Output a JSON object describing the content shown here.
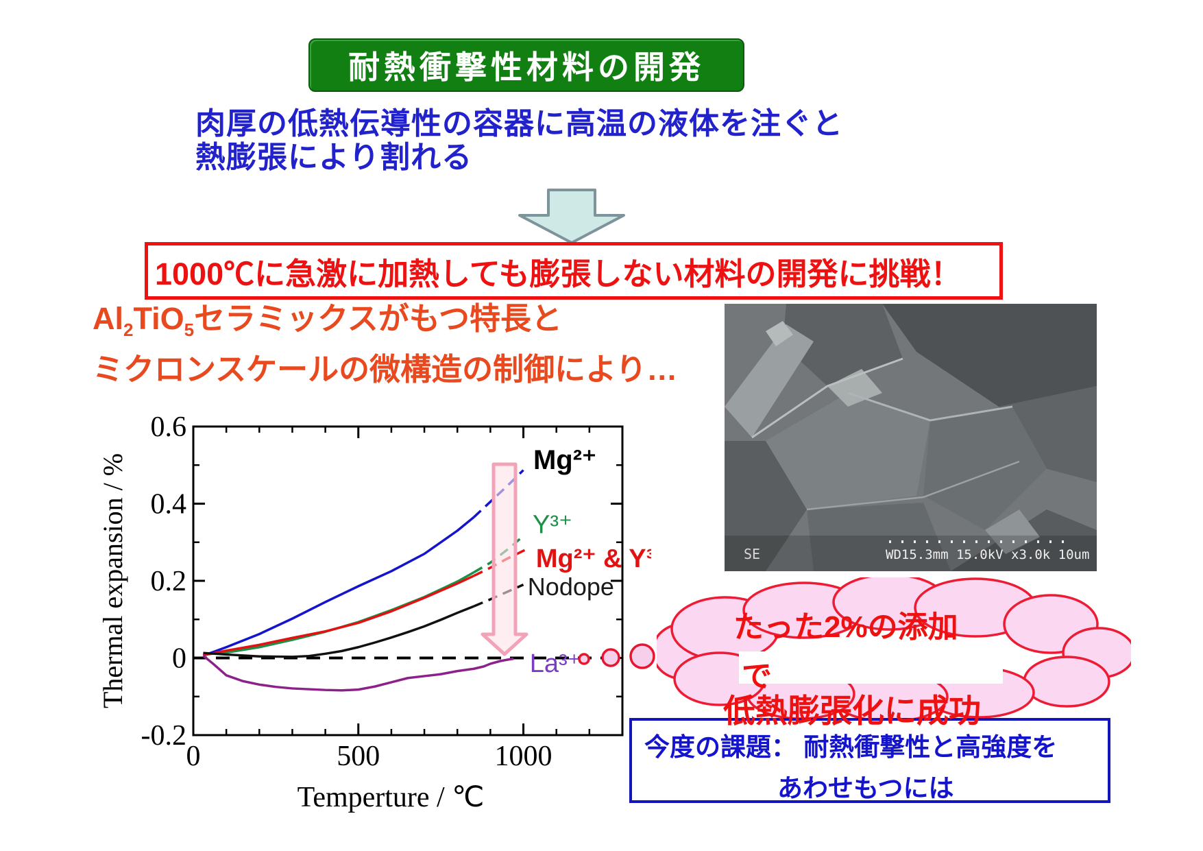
{
  "slide": {
    "title_banner": "耐熱衝撃性材料の開発",
    "intro_lines": [
      "肉厚の低熱伝導性の容器に高温の液体を注ぐと",
      "熱膨張により割れる"
    ],
    "challenge": "1000℃に急激に加熱しても膨張しない材料の開発に挑戦！",
    "feature_line1": {
      "p1": "Al",
      "sub1": "2",
      "p2": "TiO",
      "sub2": "5",
      "rest": "セラミックスがもつ特長と"
    },
    "feature_line2": "ミクロンスケールの微構造の制御により…",
    "cloud_lines": [
      "たった2%の添加",
      "で",
      "低熱膨張化に成功"
    ],
    "task_lines": [
      "今度の課題： 耐熱衝撃性と高強度を",
      "あわせもつには"
    ],
    "sem_caption": {
      "detector": "SE",
      "info": "WD15.3mm 15.0kV x3.0k   10um"
    }
  },
  "colors": {
    "banner_green": "#127f12",
    "heading_blue": "#2222cc",
    "alert_red": "#ee1111",
    "feature_orange": "#e8491e",
    "arrow_fill": "#cfe9e7",
    "arrow_stroke": "#7e949b",
    "cloud_pink": "#fbd7f1",
    "cloud_stroke": "#ed1b34",
    "task_blue": "#1414bb",
    "highlight_arrow_pink": "#f2a3b8"
  },
  "chart_data": {
    "type": "line",
    "title": "",
    "xlabel": "Temperture / ℃",
    "ylabel": "Thermal expansion / %",
    "xlim": [
      0,
      1300
    ],
    "ylim": [
      -0.2,
      0.6
    ],
    "xticks_major": [
      0,
      500,
      1000
    ],
    "xtick_minor_step": 100,
    "yticks_major": [
      -0.2,
      0,
      0.2,
      0.4,
      0.6
    ],
    "ytick_minor_step": 0.1,
    "grid": false,
    "zero_line_dashed": true,
    "legend_position": "labels-on-chart",
    "series": [
      {
        "name": "Mg2+",
        "color": "#1414cc",
        "dash_from": 850,
        "points": [
          [
            30,
            0.006
          ],
          [
            100,
            0.028
          ],
          [
            200,
            0.062
          ],
          [
            300,
            0.102
          ],
          [
            400,
            0.145
          ],
          [
            500,
            0.186
          ],
          [
            600,
            0.225
          ],
          [
            700,
            0.27
          ],
          [
            800,
            0.33
          ],
          [
            850,
            0.365
          ],
          [
            900,
            0.405
          ],
          [
            950,
            0.445
          ],
          [
            1000,
            0.487
          ]
        ]
      },
      {
        "name": "Y3+",
        "color": "#1d9048",
        "dash_from": 830,
        "points": [
          [
            30,
            0.009
          ],
          [
            100,
            0.014
          ],
          [
            200,
            0.028
          ],
          [
            300,
            0.047
          ],
          [
            400,
            0.068
          ],
          [
            500,
            0.093
          ],
          [
            600,
            0.124
          ],
          [
            700,
            0.158
          ],
          [
            800,
            0.198
          ],
          [
            850,
            0.222
          ],
          [
            900,
            0.247
          ],
          [
            950,
            0.28
          ],
          [
            1000,
            0.316
          ]
        ]
      },
      {
        "name": "Mg2+ & Y3+",
        "color": "#e21212",
        "dash_from": 840,
        "points": [
          [
            30,
            0.007
          ],
          [
            100,
            0.019
          ],
          [
            200,
            0.034
          ],
          [
            300,
            0.052
          ],
          [
            400,
            0.069
          ],
          [
            500,
            0.091
          ],
          [
            600,
            0.121
          ],
          [
            700,
            0.156
          ],
          [
            800,
            0.193
          ],
          [
            850,
            0.213
          ],
          [
            900,
            0.234
          ],
          [
            950,
            0.257
          ],
          [
            1010,
            0.282
          ]
        ]
      },
      {
        "name": "Nodope",
        "color": "#111111",
        "dash_from": 820,
        "points": [
          [
            30,
            0.013
          ],
          [
            100,
            0.009
          ],
          [
            200,
            0.004
          ],
          [
            300,
            0.003
          ],
          [
            350,
            0.005
          ],
          [
            400,
            0.011
          ],
          [
            450,
            0.018
          ],
          [
            500,
            0.028
          ],
          [
            550,
            0.04
          ],
          [
            600,
            0.053
          ],
          [
            650,
            0.067
          ],
          [
            700,
            0.082
          ],
          [
            750,
            0.099
          ],
          [
            800,
            0.117
          ],
          [
            850,
            0.134
          ],
          [
            900,
            0.152
          ],
          [
            950,
            0.171
          ],
          [
            1000,
            0.19
          ]
        ]
      },
      {
        "name": "La3+",
        "color": "#8c2289",
        "points": [
          [
            30,
            0.006
          ],
          [
            60,
            -0.015
          ],
          [
            100,
            -0.045
          ],
          [
            150,
            -0.06
          ],
          [
            200,
            -0.069
          ],
          [
            250,
            -0.075
          ],
          [
            300,
            -0.079
          ],
          [
            350,
            -0.081
          ],
          [
            400,
            -0.083
          ],
          [
            450,
            -0.084
          ],
          [
            500,
            -0.082
          ],
          [
            550,
            -0.074
          ],
          [
            600,
            -0.063
          ],
          [
            650,
            -0.052
          ],
          [
            700,
            -0.047
          ],
          [
            750,
            -0.042
          ],
          [
            800,
            -0.034
          ],
          [
            850,
            -0.028
          ],
          [
            880,
            -0.022
          ],
          [
            900,
            -0.015
          ],
          [
            930,
            -0.008
          ],
          [
            955,
            -0.004
          ],
          [
            970,
            -0.002
          ]
        ]
      }
    ],
    "annotations": [
      {
        "text": "Mg²⁺",
        "x": 1030,
        "y": 0.49,
        "color": "#000000",
        "size": 40,
        "bold": true
      },
      {
        "text": "Y³⁺",
        "x": 1028,
        "y": 0.324,
        "color": "#1d9048",
        "size": 38,
        "bold": false
      },
      {
        "text": "Mg²⁺ & Y³⁺",
        "x": 1038,
        "y": 0.236,
        "color": "#e21212",
        "size": 38,
        "bold": true
      },
      {
        "text": "Nodope",
        "x": 1013,
        "y": 0.163,
        "color": "#1a1a1a",
        "size": 36,
        "bold": false
      },
      {
        "text": "La³⁺",
        "x": 1019,
        "y": -0.036,
        "color": "#7a3fc0",
        "size": 38,
        "bold": false
      }
    ]
  }
}
